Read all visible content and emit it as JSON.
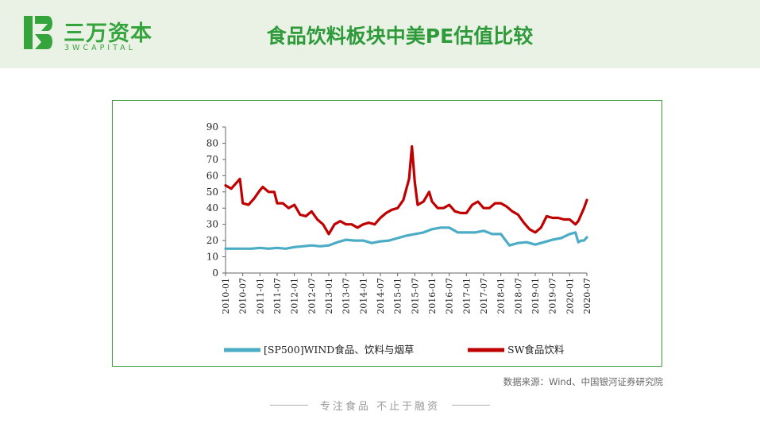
{
  "brand": {
    "name_cn": "三万资本",
    "name_en": "3WCAPITAL",
    "color": "#35a43c"
  },
  "page": {
    "title": "食品饮料板块中美PE估值比较",
    "source": "数据来源：Wind、中国银河证券研究院",
    "slogan": "专注食品  不止于融资"
  },
  "chart_data": {
    "type": "line",
    "title": "",
    "xlabel": "",
    "ylabel": "",
    "ylim": [
      0,
      90
    ],
    "yticks": [
      0,
      10,
      20,
      30,
      40,
      50,
      60,
      70,
      80,
      90
    ],
    "xlim": [
      "2010-01",
      "2020-07"
    ],
    "xticks": [
      "2010-01",
      "2010-07",
      "2011-01",
      "2011-07",
      "2012-01",
      "2012-07",
      "2013-01",
      "2013-07",
      "2014-01",
      "2014-07",
      "2015-01",
      "2015-07",
      "2016-01",
      "2016-07",
      "2017-01",
      "2017-07",
      "2018-01",
      "2018-07",
      "2019-01",
      "2019-07",
      "2020-01",
      "2020-07"
    ],
    "grid": false,
    "legend": "bottom",
    "series": [
      {
        "name": "[SP500]WIND食品、饮料与烟草",
        "color": "#4bacc6",
        "points": [
          [
            "2010-01",
            15
          ],
          [
            "2010-04",
            15
          ],
          [
            "2010-07",
            15
          ],
          [
            "2010-10",
            15
          ],
          [
            "2011-01",
            15.5
          ],
          [
            "2011-04",
            15
          ],
          [
            "2011-07",
            15.5
          ],
          [
            "2011-10",
            15
          ],
          [
            "2012-01",
            16
          ],
          [
            "2012-04",
            16.5
          ],
          [
            "2012-07",
            17
          ],
          [
            "2012-10",
            16.5
          ],
          [
            "2013-01",
            17
          ],
          [
            "2013-04",
            19
          ],
          [
            "2013-07",
            20.5
          ],
          [
            "2013-10",
            20
          ],
          [
            "2014-01",
            20
          ],
          [
            "2014-04",
            18.5
          ],
          [
            "2014-07",
            19.5
          ],
          [
            "2014-10",
            20
          ],
          [
            "2015-01",
            21.5
          ],
          [
            "2015-04",
            23
          ],
          [
            "2015-07",
            24
          ],
          [
            "2015-10",
            25
          ],
          [
            "2016-01",
            27
          ],
          [
            "2016-04",
            28
          ],
          [
            "2016-07",
            28
          ],
          [
            "2016-10",
            25
          ],
          [
            "2017-01",
            25
          ],
          [
            "2017-04",
            25
          ],
          [
            "2017-07",
            26
          ],
          [
            "2017-10",
            24
          ],
          [
            "2018-01",
            24
          ],
          [
            "2018-04",
            17
          ],
          [
            "2018-07",
            18.5
          ],
          [
            "2018-10",
            19
          ],
          [
            "2019-01",
            17.5
          ],
          [
            "2019-04",
            19
          ],
          [
            "2019-07",
            20.5
          ],
          [
            "2019-10",
            21.5
          ],
          [
            "2020-01",
            24
          ],
          [
            "2020-03",
            25
          ],
          [
            "2020-04",
            19
          ],
          [
            "2020-05",
            20
          ],
          [
            "2020-06",
            20
          ],
          [
            "2020-07",
            22
          ]
        ]
      },
      {
        "name": "SW食品饮料",
        "color": "#c00000",
        "points": [
          [
            "2010-01",
            54
          ],
          [
            "2010-03",
            52
          ],
          [
            "2010-06",
            58
          ],
          [
            "2010-07",
            43
          ],
          [
            "2010-09",
            42
          ],
          [
            "2010-11",
            46
          ],
          [
            "2011-01",
            51
          ],
          [
            "2011-02",
            53
          ],
          [
            "2011-04",
            50
          ],
          [
            "2011-06",
            50
          ],
          [
            "2011-07",
            43
          ],
          [
            "2011-09",
            43
          ],
          [
            "2011-11",
            40
          ],
          [
            "2012-01",
            42
          ],
          [
            "2012-03",
            36
          ],
          [
            "2012-05",
            35
          ],
          [
            "2012-07",
            38
          ],
          [
            "2012-09",
            33
          ],
          [
            "2012-11",
            30
          ],
          [
            "2013-01",
            24
          ],
          [
            "2013-03",
            30
          ],
          [
            "2013-05",
            32
          ],
          [
            "2013-07",
            30
          ],
          [
            "2013-09",
            30
          ],
          [
            "2013-11",
            28
          ],
          [
            "2014-01",
            30
          ],
          [
            "2014-03",
            31
          ],
          [
            "2014-05",
            30
          ],
          [
            "2014-07",
            34
          ],
          [
            "2014-09",
            37
          ],
          [
            "2014-11",
            39
          ],
          [
            "2015-01",
            40
          ],
          [
            "2015-03",
            45
          ],
          [
            "2015-05",
            58
          ],
          [
            "2015-06",
            78
          ],
          [
            "2015-07",
            56
          ],
          [
            "2015-08",
            42
          ],
          [
            "2015-10",
            44
          ],
          [
            "2015-12",
            50
          ],
          [
            "2016-01",
            44
          ],
          [
            "2016-03",
            40
          ],
          [
            "2016-05",
            40
          ],
          [
            "2016-07",
            42
          ],
          [
            "2016-09",
            38
          ],
          [
            "2016-11",
            37
          ],
          [
            "2017-01",
            37
          ],
          [
            "2017-03",
            42
          ],
          [
            "2017-05",
            44
          ],
          [
            "2017-07",
            40
          ],
          [
            "2017-09",
            40
          ],
          [
            "2017-11",
            43
          ],
          [
            "2018-01",
            43
          ],
          [
            "2018-03",
            41
          ],
          [
            "2018-05",
            38
          ],
          [
            "2018-07",
            36
          ],
          [
            "2018-09",
            31
          ],
          [
            "2018-11",
            27
          ],
          [
            "2019-01",
            25
          ],
          [
            "2019-03",
            28
          ],
          [
            "2019-05",
            35
          ],
          [
            "2019-07",
            34
          ],
          [
            "2019-09",
            34
          ],
          [
            "2019-11",
            33
          ],
          [
            "2020-01",
            33
          ],
          [
            "2020-03",
            30
          ],
          [
            "2020-04",
            32
          ],
          [
            "2020-05",
            36
          ],
          [
            "2020-06",
            40
          ],
          [
            "2020-07",
            45
          ]
        ]
      }
    ]
  }
}
